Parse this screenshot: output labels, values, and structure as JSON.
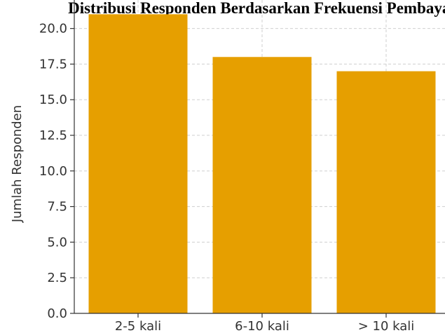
{
  "chart_data": {
    "type": "bar",
    "title": "Distribusi Responden Berdasarkan Frekuensi Pembayaran",
    "xlabel": "",
    "ylabel": "Jumlah Responden",
    "categories": [
      "2-5 kali",
      "6-10 kali",
      "> 10 kali"
    ],
    "values": [
      21,
      18,
      17
    ],
    "ylim": [
      0,
      22
    ],
    "yticks": [
      "0.0",
      "2.5",
      "5.0",
      "7.5",
      "10.0",
      "12.5",
      "15.0",
      "17.5",
      "20.0"
    ],
    "grid": true,
    "bar_color": "#E69F00"
  }
}
